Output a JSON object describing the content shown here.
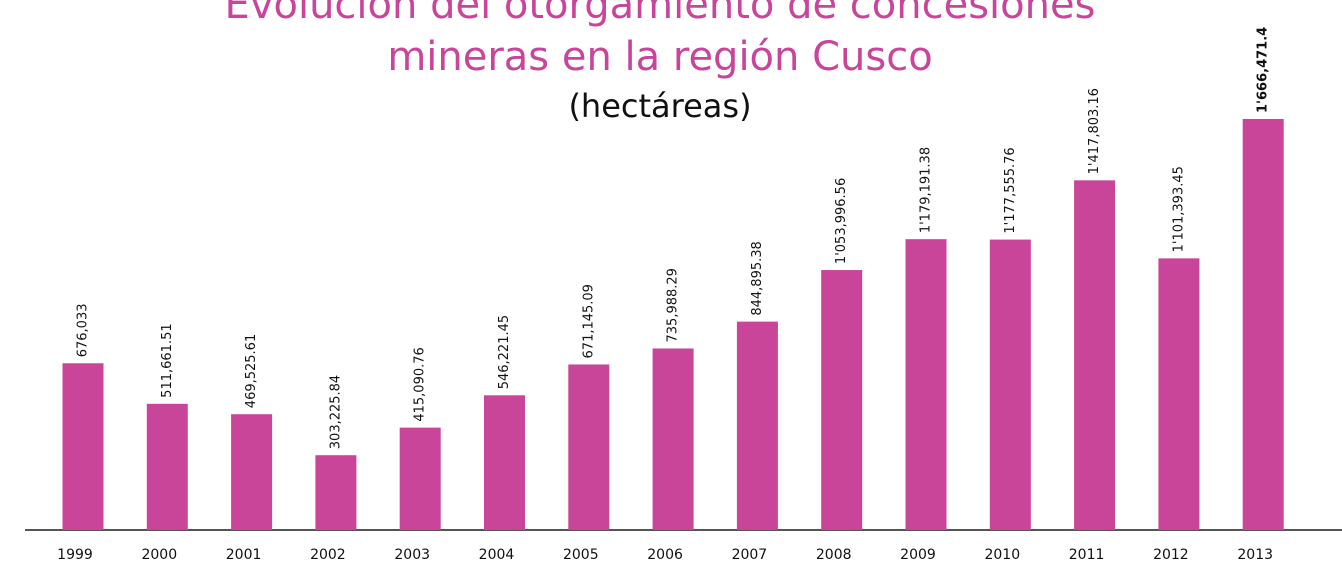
{
  "chart_data": {
    "type": "bar",
    "title": [
      "Evolución del otorgamiento de concesiones",
      "mineras en la región Cusco"
    ],
    "subtitle": "(hectáreas)",
    "categories": [
      "1999",
      "2000",
      "2001",
      "2002",
      "2003",
      "2004",
      "2005",
      "2006",
      "2007",
      "2008",
      "2009",
      "2010",
      "2011",
      "2012",
      "2013"
    ],
    "values": [
      676033,
      511661.51,
      469525.61,
      303225.84,
      415090.76,
      546221.45,
      671145.09,
      735988.29,
      844895.38,
      1053996.56,
      1179191.38,
      1177555.76,
      1417803.16,
      1101393.45,
      1666471.4
    ],
    "value_labels": [
      "676,033",
      "511,661.51",
      "469,525.61",
      "303,225.84",
      "415,090.76",
      "546,221.45",
      "671,145.09",
      "735,988.29",
      "844,895.38",
      "1'053,996.56",
      "1'179,191.38",
      "1'177,555.76",
      "1'417,803.16",
      "1'101,393.45",
      "1'666,471.4"
    ],
    "color": "#c8459a"
  }
}
